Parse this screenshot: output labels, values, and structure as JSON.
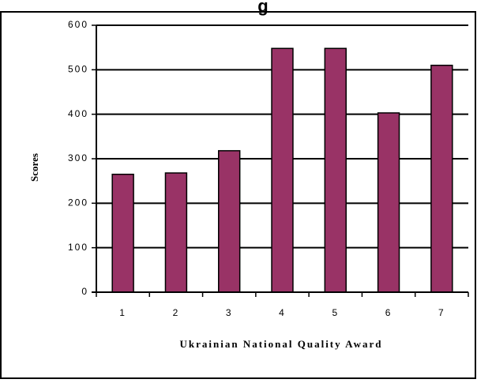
{
  "chart_data": {
    "type": "bar",
    "title": "g",
    "categories": [
      "1",
      "2",
      "3",
      "4",
      "5",
      "6",
      "7"
    ],
    "values": [
      265,
      268,
      318,
      548,
      548,
      403,
      510
    ],
    "xlabel": "Ukrainian National Quality Award",
    "ylabel": "Scores",
    "ylim": [
      0,
      600
    ],
    "yticks": [
      "0",
      "100",
      "200",
      "300",
      "400",
      "500",
      "600"
    ],
    "grid": true,
    "legend": "none",
    "bar_color": "#993366",
    "bar_edge_color": "#000000"
  }
}
